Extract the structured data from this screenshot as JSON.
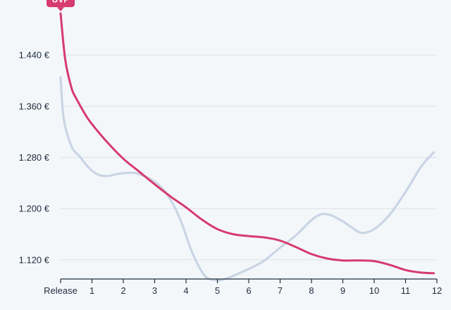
{
  "chart_data": {
    "type": "line",
    "title": "",
    "xlabel": "",
    "ylabel": "",
    "x_tick_labels": [
      "Release",
      "1",
      "2",
      "3",
      "4",
      "5",
      "6",
      "7",
      "8",
      "9",
      "10",
      "11",
      "12"
    ],
    "x_ticks": [
      0,
      1,
      2,
      3,
      4,
      5,
      6,
      7,
      8,
      9,
      10,
      11,
      12
    ],
    "xlim": [
      0,
      12
    ],
    "y_ticks": [
      1120,
      1200,
      1280,
      1360,
      1440
    ],
    "y_tick_labels": [
      "1.120 €",
      "1.200 €",
      "1.280 €",
      "1.360 €",
      "1.440 €"
    ],
    "ylim": [
      1090,
      1515
    ],
    "grid": "horizontal",
    "annotation": {
      "label": "UVP",
      "x": 0,
      "y": 1505
    },
    "series": [
      {
        "color": "#d63a6e",
        "x": [
          0,
          0.15,
          0.35,
          0.5,
          0.8,
          1,
          1.5,
          2,
          2.5,
          3,
          3.5,
          4,
          4.5,
          5,
          5.5,
          6,
          6.5,
          7,
          7.5,
          8,
          8.5,
          9,
          9.5,
          10,
          10.5,
          11,
          11.5,
          11.9
        ],
        "y": [
          1505,
          1432,
          1388,
          1372,
          1346,
          1332,
          1303,
          1278,
          1258,
          1238,
          1219,
          1202,
          1183,
          1168,
          1160,
          1157,
          1155,
          1150,
          1140,
          1129,
          1122,
          1119,
          1119,
          1118,
          1112,
          1104,
          1100,
          1099
        ]
      },
      {
        "color": "#c9d5e4",
        "x": [
          0,
          0.1,
          0.35,
          0.6,
          0.9,
          1.2,
          1.5,
          1.8,
          2.2,
          2.5,
          3,
          3.4,
          3.8,
          4.2,
          4.6,
          5,
          5.3,
          5.7,
          6.1,
          6.5,
          7,
          7.5,
          8,
          8.3,
          8.6,
          9,
          9.3,
          9.6,
          10,
          10.5,
          11,
          11.5,
          11.9
        ],
        "y": [
          1405,
          1340,
          1297,
          1282,
          1264,
          1253,
          1251,
          1254,
          1256,
          1254,
          1242,
          1222,
          1185,
          1131,
          1095,
          1088,
          1091,
          1099,
          1108,
          1119,
          1139,
          1158,
          1182,
          1191,
          1190,
          1180,
          1170,
          1162,
          1168,
          1191,
          1226,
          1266,
          1288
        ]
      }
    ]
  }
}
